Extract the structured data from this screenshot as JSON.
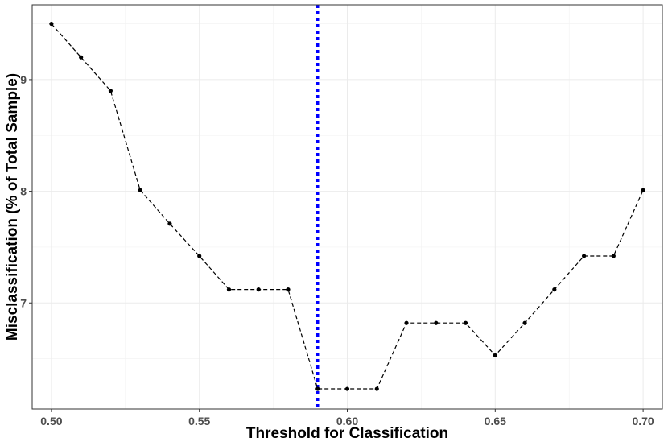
{
  "chart_data": {
    "type": "line",
    "title": "",
    "xlabel": "Threshold for Classification",
    "ylabel": "Misclassification (% of Total Sample)",
    "xlim": [
      0.4935,
      0.7065
    ],
    "ylim": [
      6.05,
      9.67
    ],
    "x_ticks": [
      0.5,
      0.55,
      0.6,
      0.65,
      0.7
    ],
    "x_tick_labels": [
      "0.50",
      "0.55",
      "0.60",
      "0.65",
      "0.70"
    ],
    "y_ticks": [
      7,
      8,
      9
    ],
    "y_tick_labels": [
      "7",
      "8",
      "9"
    ],
    "grid": true,
    "line_style": "dashed",
    "line_color": "#000000",
    "vline": {
      "x": 0.59,
      "color": "#0000ff",
      "style": "dotted"
    },
    "series": [
      {
        "x": [
          0.5,
          0.51,
          0.52,
          0.53,
          0.54,
          0.55,
          0.56,
          0.57,
          0.58,
          0.59,
          0.6,
          0.61,
          0.62,
          0.63,
          0.64,
          0.65,
          0.66,
          0.67,
          0.68,
          0.69,
          0.7
        ],
        "values": [
          9.5,
          9.2,
          8.9,
          8.01,
          7.71,
          7.42,
          7.12,
          7.12,
          7.12,
          6.23,
          6.23,
          6.23,
          6.82,
          6.82,
          6.82,
          6.53,
          6.82,
          7.12,
          7.42,
          7.42,
          8.01
        ]
      }
    ]
  }
}
